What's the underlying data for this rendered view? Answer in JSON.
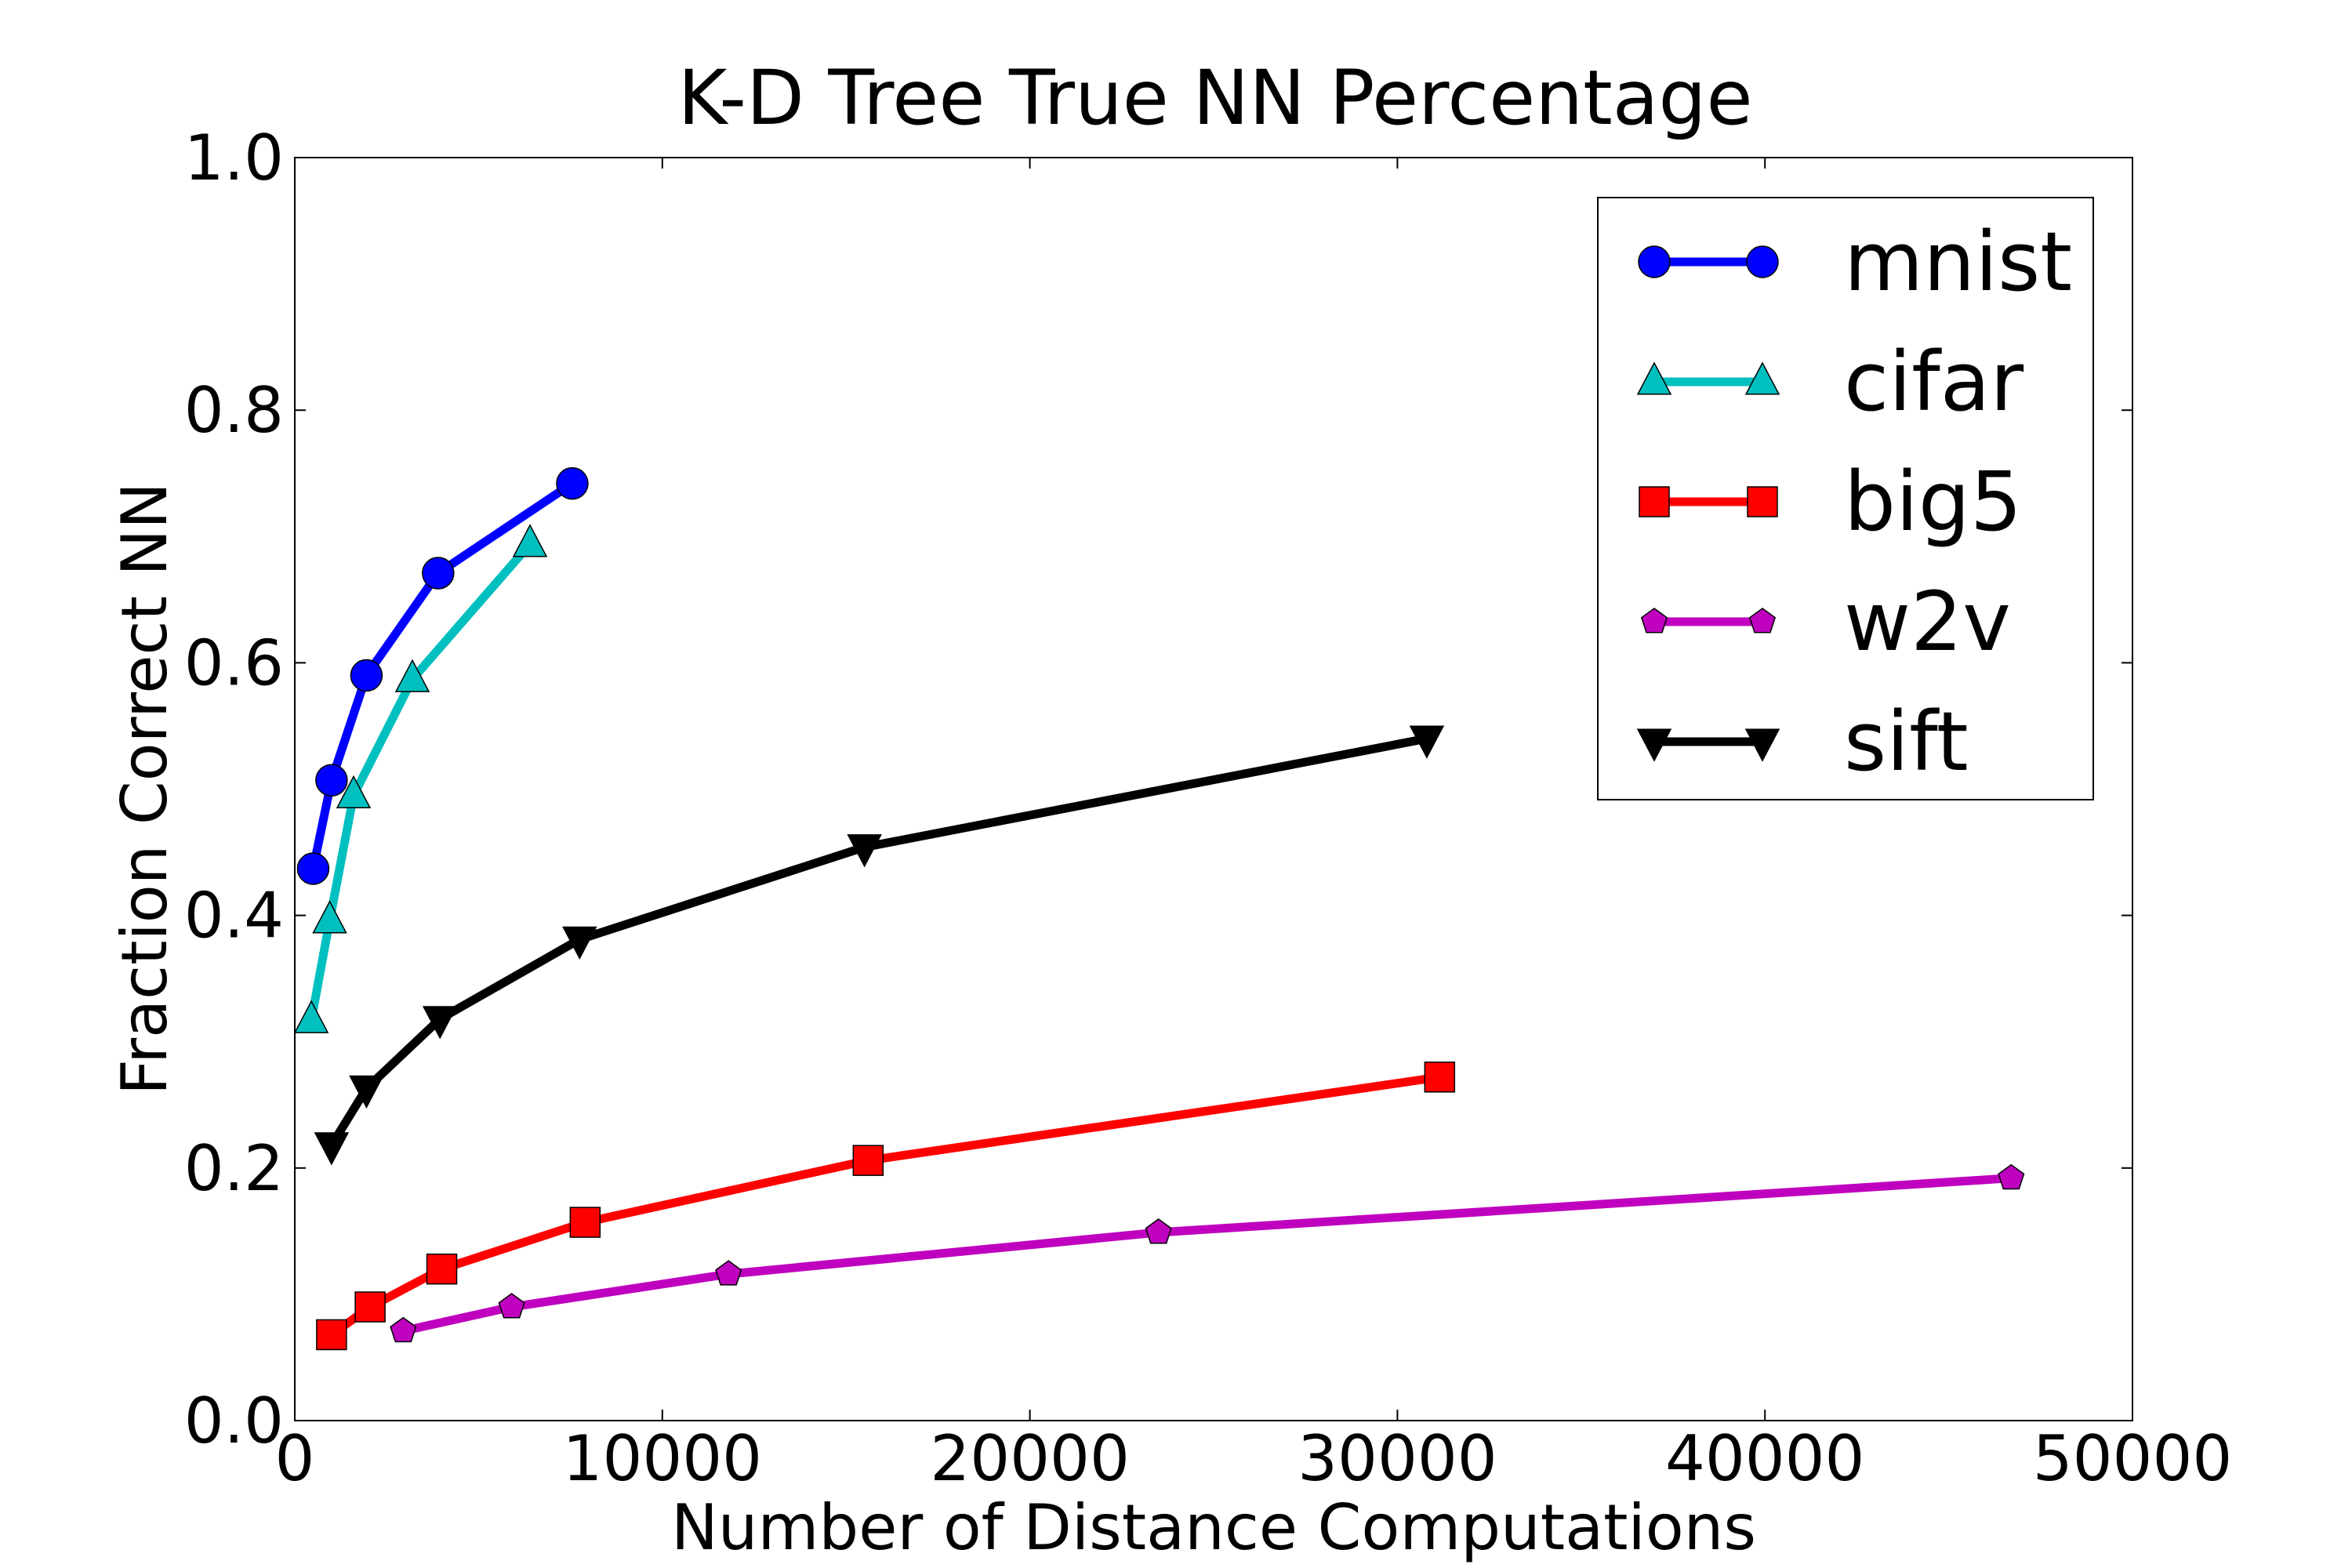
{
  "chart_data": {
    "type": "line",
    "title": "K-D Tree True NN Percentage",
    "xlabel": "Number of Distance Computations",
    "ylabel": "Fraction Correct NN",
    "xlim": [
      0,
      50000
    ],
    "ylim": [
      0.0,
      1.0
    ],
    "x_ticks": [
      0,
      10000,
      20000,
      30000,
      40000,
      50000
    ],
    "x_tick_labels": [
      "0",
      "10000",
      "20000",
      "30000",
      "40000",
      "50000"
    ],
    "y_ticks": [
      0.0,
      0.2,
      0.4,
      0.6,
      0.8,
      1.0
    ],
    "y_tick_labels": [
      "0.0",
      "0.2",
      "0.4",
      "0.6",
      "0.8",
      "1.0"
    ],
    "grid": false,
    "legend_position": "top-right",
    "series": [
      {
        "name": "mnist",
        "color": "#0000ff",
        "marker": "circle",
        "x": [
          500,
          1000,
          1950,
          3900,
          7550
        ],
        "y": [
          0.437,
          0.507,
          0.59,
          0.671,
          0.742
        ]
      },
      {
        "name": "cifar",
        "color": "#00bfbf",
        "marker": "triangle-up",
        "x": [
          450,
          950,
          1600,
          3200,
          6400
        ],
        "y": [
          0.317,
          0.396,
          0.495,
          0.587,
          0.694
        ]
      },
      {
        "name": "big5",
        "color": "#ff0000",
        "marker": "square",
        "x": [
          1000,
          2050,
          4000,
          7900,
          15600,
          31150
        ],
        "y": [
          0.068,
          0.09,
          0.12,
          0.157,
          0.206,
          0.272
        ]
      },
      {
        "name": "w2v",
        "color": "#bf00bf",
        "marker": "pentagon",
        "x": [
          2950,
          5900,
          11800,
          23500,
          46700
        ],
        "y": [
          0.071,
          0.09,
          0.116,
          0.149,
          0.192
        ]
      },
      {
        "name": "sift",
        "color": "#000000",
        "marker": "triangle-down",
        "x": [
          1000,
          1950,
          3950,
          7750,
          15500,
          30800
        ],
        "y": [
          0.218,
          0.263,
          0.318,
          0.381,
          0.454,
          0.54
        ]
      }
    ]
  }
}
